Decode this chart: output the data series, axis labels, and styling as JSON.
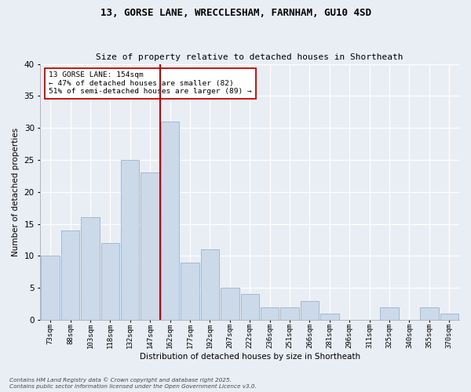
{
  "title1": "13, GORSE LANE, WRECCLESHAM, FARNHAM, GU10 4SD",
  "title2": "Size of property relative to detached houses in Shortheath",
  "xlabel": "Distribution of detached houses by size in Shortheath",
  "ylabel": "Number of detached properties",
  "bar_color": "#ccd9e8",
  "bar_edge_color": "#99b3cc",
  "bg_color": "#e8eef4",
  "plot_bg_color": "#e8eef4",
  "grid_color": "#ffffff",
  "vline_color": "#cc0000",
  "vline_x": 5.5,
  "annotation_text": "13 GORSE LANE: 154sqm\n← 47% of detached houses are smaller (82)\n51% of semi-detached houses are larger (89) →",
  "categories": [
    "73sqm",
    "88sqm",
    "103sqm",
    "118sqm",
    "132sqm",
    "147sqm",
    "162sqm",
    "177sqm",
    "192sqm",
    "207sqm",
    "222sqm",
    "236sqm",
    "251sqm",
    "266sqm",
    "281sqm",
    "296sqm",
    "311sqm",
    "325sqm",
    "340sqm",
    "355sqm",
    "370sqm"
  ],
  "values": [
    10,
    14,
    16,
    12,
    25,
    23,
    31,
    9,
    11,
    5,
    4,
    2,
    2,
    3,
    1,
    0,
    0,
    2,
    0,
    2,
    1
  ],
  "ylim": [
    0,
    40
  ],
  "yticks": [
    0,
    5,
    10,
    15,
    20,
    25,
    30,
    35,
    40
  ],
  "footer1": "Contains HM Land Registry data © Crown copyright and database right 2025.",
  "footer2": "Contains public sector information licensed under the Open Government Licence v3.0."
}
